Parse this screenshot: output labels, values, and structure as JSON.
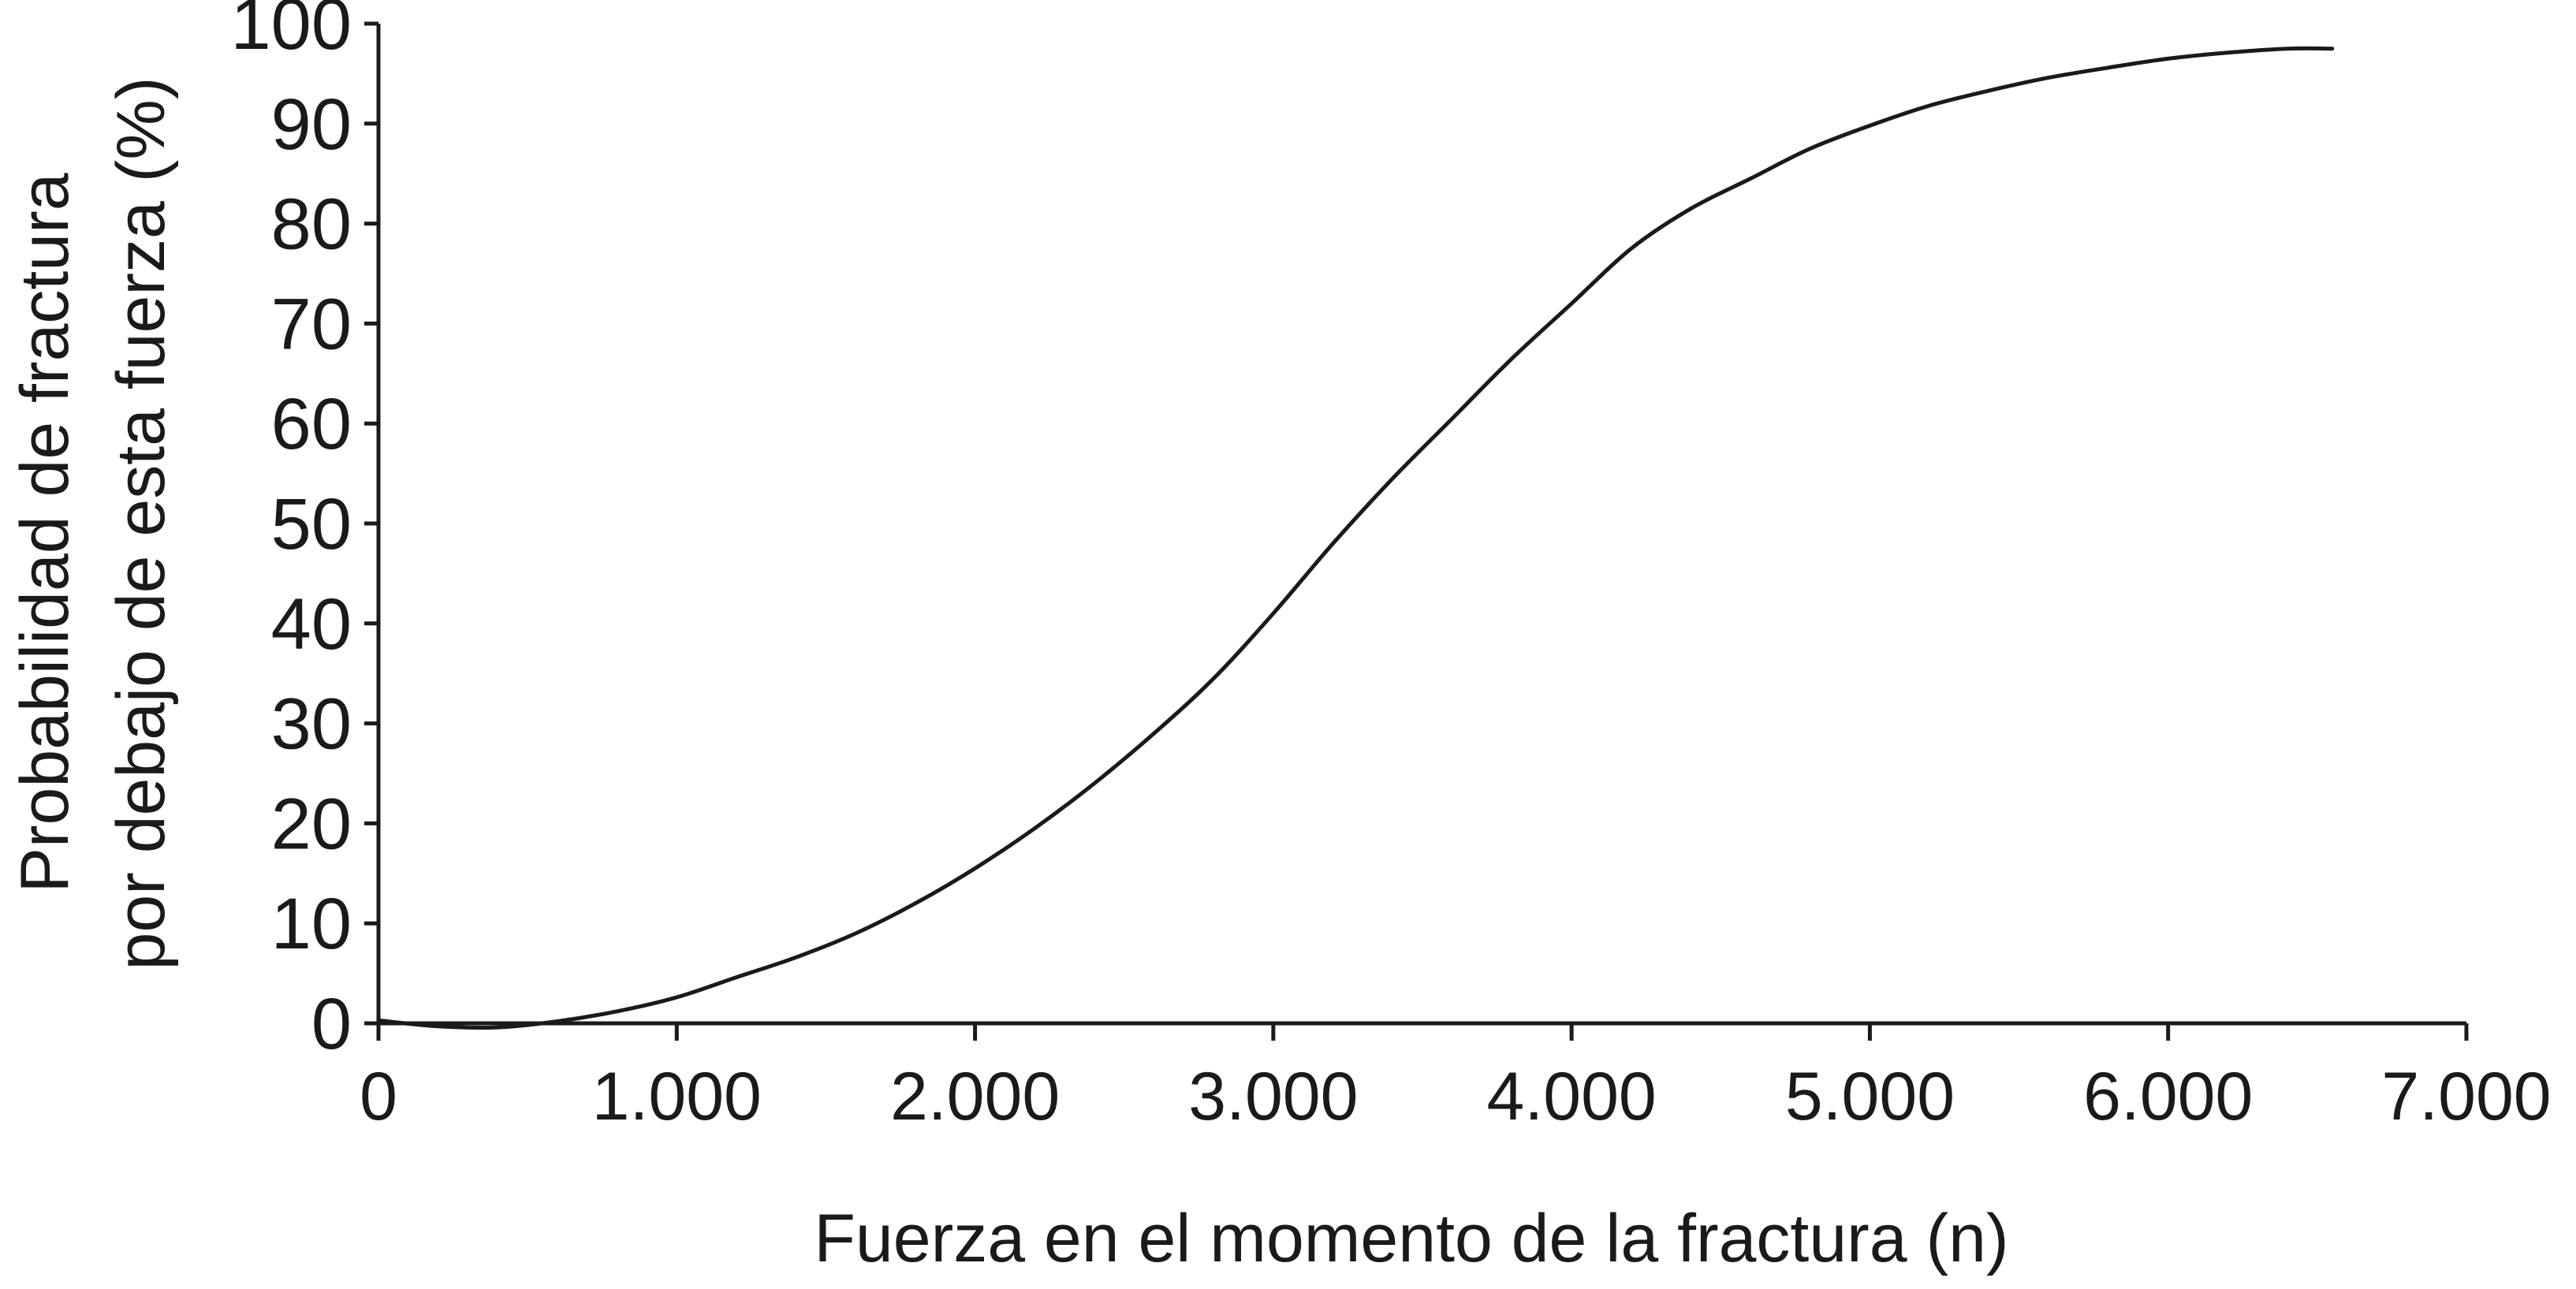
{
  "chart_data": {
    "type": "line",
    "title": "",
    "xlabel": "Fuerza en el momento de la fractura (n)",
    "ylabel_lines": [
      "Probabilidad de fractura",
      "por debajo de esta fuerza (%)"
    ],
    "xlim": [
      0,
      7000
    ],
    "ylim": [
      0,
      100
    ],
    "x_ticks": [
      0,
      1000,
      2000,
      3000,
      4000,
      5000,
      6000,
      7000
    ],
    "x_tick_labels": [
      "0",
      "1.000",
      "2.000",
      "3.000",
      "4.000",
      "5.000",
      "6.000",
      "7.000"
    ],
    "y_ticks": [
      0,
      10,
      20,
      30,
      40,
      50,
      60,
      70,
      80,
      90,
      100
    ],
    "y_tick_labels": [
      "0",
      "10",
      "20",
      "30",
      "40",
      "50",
      "60",
      "70",
      "80",
      "90",
      "100"
    ],
    "grid": false,
    "legend": "none",
    "line_color": "#1a1a1a",
    "axis_color": "#1a1a1a",
    "series": [
      {
        "x": [
          0,
          200,
          400,
          600,
          800,
          1000,
          1200,
          1400,
          1600,
          1800,
          2000,
          2200,
          2400,
          2600,
          2800,
          3000,
          3200,
          3400,
          3600,
          3800,
          4000,
          4200,
          4400,
          4600,
          4800,
          5000,
          5200,
          5400,
          5600,
          5800,
          6000,
          6200,
          6400,
          6550
        ],
        "y": [
          0.3,
          -0.3,
          -0.4,
          0.2,
          1.2,
          2.6,
          4.6,
          6.6,
          9.0,
          12.0,
          15.5,
          19.5,
          24.0,
          29.0,
          34.5,
          41.0,
          48.0,
          54.5,
          60.5,
          66.5,
          72.0,
          77.5,
          81.5,
          84.5,
          87.5,
          89.8,
          91.8,
          93.3,
          94.6,
          95.6,
          96.5,
          97.1,
          97.5,
          97.5
        ]
      }
    ]
  }
}
